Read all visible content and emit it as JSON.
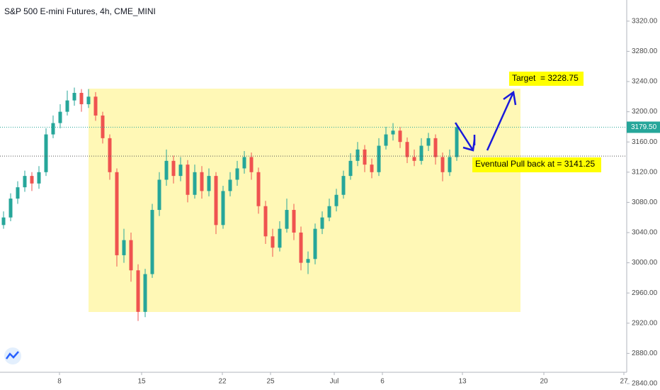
{
  "chart_data": {
    "type": "candlestick",
    "title": "S&P 500 E-mini Futures, 4h, CME_MINI",
    "up_color": "#26a69a",
    "down_color": "#ef5350",
    "x": [
      0,
      1,
      2,
      3,
      4,
      5,
      6,
      7,
      8,
      9,
      10,
      11,
      12,
      13,
      14,
      15,
      16,
      17,
      18,
      19,
      20,
      21,
      22,
      23,
      24,
      25,
      26,
      27,
      28,
      29,
      30,
      31,
      32,
      33,
      34,
      35,
      36,
      37,
      38,
      39,
      40,
      41,
      42,
      43,
      44,
      45,
      46,
      47,
      48,
      49,
      50,
      51,
      52,
      53,
      54,
      55,
      56,
      57,
      58,
      59,
      60,
      61,
      62,
      63,
      64
    ],
    "open": [
      3050,
      3060,
      3085,
      3100,
      3115,
      3105,
      3120,
      3170,
      3185,
      3200,
      3215,
      3225,
      3210,
      3220,
      3195,
      3165,
      3120,
      3010,
      3030,
      2990,
      2935,
      2985,
      3070,
      3110,
      3135,
      3115,
      3130,
      3090,
      3120,
      3095,
      3115,
      3050,
      3095,
      3110,
      3125,
      3140,
      3120,
      3075,
      3035,
      3020,
      3045,
      3070,
      3040,
      3000,
      3005,
      3045,
      3060,
      3075,
      3090,
      3115,
      3135,
      3150,
      3130,
      3120,
      3155,
      3170,
      3175,
      3160,
      3140,
      3135,
      3155,
      3165,
      3140,
      3120,
      3140
    ],
    "high": [
      3068,
      3092,
      3108,
      3122,
      3120,
      3128,
      3178,
      3195,
      3210,
      3228,
      3232,
      3230,
      3230,
      3226,
      3200,
      3170,
      3125,
      3045,
      3040,
      2998,
      2992,
      3078,
      3120,
      3150,
      3142,
      3140,
      3136,
      3130,
      3128,
      3125,
      3120,
      3102,
      3120,
      3135,
      3148,
      3146,
      3126,
      3082,
      3045,
      3055,
      3085,
      3078,
      3048,
      3015,
      3052,
      3068,
      3085,
      3098,
      3122,
      3145,
      3160,
      3156,
      3138,
      3165,
      3180,
      3185,
      3180,
      3166,
      3150,
      3165,
      3172,
      3170,
      3146,
      3150,
      3185
    ],
    "low": [
      3045,
      3055,
      3078,
      3094,
      3095,
      3098,
      3115,
      3165,
      3178,
      3195,
      3208,
      3200,
      3205,
      3188,
      3158,
      3110,
      2995,
      3000,
      2975,
      2923,
      2928,
      2980,
      3062,
      3102,
      3105,
      3108,
      3080,
      3085,
      3085,
      3088,
      3038,
      3045,
      3088,
      3102,
      3118,
      3110,
      3065,
      3025,
      3008,
      3015,
      3040,
      3030,
      2990,
      2985,
      2998,
      3038,
      3055,
      3068,
      3085,
      3110,
      3128,
      3120,
      3112,
      3115,
      3150,
      3162,
      3152,
      3132,
      3128,
      3130,
      3148,
      3130,
      3108,
      3115,
      3135
    ],
    "close": [
      3060,
      3085,
      3100,
      3115,
      3105,
      3120,
      3170,
      3185,
      3200,
      3215,
      3225,
      3210,
      3220,
      3195,
      3165,
      3120,
      3010,
      3030,
      2990,
      2935,
      2985,
      3070,
      3110,
      3135,
      3115,
      3130,
      3090,
      3120,
      3095,
      3115,
      3050,
      3095,
      3110,
      3125,
      3140,
      3120,
      3075,
      3035,
      3020,
      3045,
      3070,
      3040,
      3000,
      3005,
      3045,
      3060,
      3075,
      3090,
      3115,
      3135,
      3150,
      3130,
      3120,
      3155,
      3170,
      3175,
      3160,
      3140,
      3135,
      3155,
      3165,
      3140,
      3120,
      3140,
      3179.5
    ],
    "xlim": [
      -0.5,
      88
    ],
    "xticks": [
      {
        "value": 7.9,
        "label": "8"
      },
      {
        "value": 19.5,
        "label": "15"
      },
      {
        "value": 30.9,
        "label": "22"
      },
      {
        "value": 37.7,
        "label": "25"
      },
      {
        "value": 46.7,
        "label": "Jul"
      },
      {
        "value": 53.5,
        "label": "6"
      },
      {
        "value": 64.8,
        "label": "13"
      },
      {
        "value": 76.3,
        "label": "20"
      },
      {
        "value": 87.6,
        "label": "27"
      }
    ],
    "ylim": [
      2855,
      3348
    ],
    "yticks": [
      {
        "value": 2840,
        "label": "2840.00"
      },
      {
        "value": 2880,
        "label": "2880.00"
      },
      {
        "value": 2920,
        "label": "2920.00"
      },
      {
        "value": 2960,
        "label": "2960.00"
      },
      {
        "value": 3000,
        "label": "3000.00"
      },
      {
        "value": 3040,
        "label": "3040.00"
      },
      {
        "value": 3080,
        "label": "3080.00"
      },
      {
        "value": 3120,
        "label": "3120.00"
      },
      {
        "value": 3160,
        "label": "3160.00"
      },
      {
        "value": 3200,
        "label": "3200.00"
      },
      {
        "value": 3240,
        "label": "3240.00"
      },
      {
        "value": 3280,
        "label": "3280.00"
      },
      {
        "value": 3320,
        "label": "3320.00"
      }
    ],
    "last_price": {
      "value": 3179.5,
      "label": "3179.50"
    },
    "pullback_level": 3141.25,
    "annotations": [
      "Target  = 3228.75",
      "Eventual Pull back at = 3141.25"
    ]
  }
}
